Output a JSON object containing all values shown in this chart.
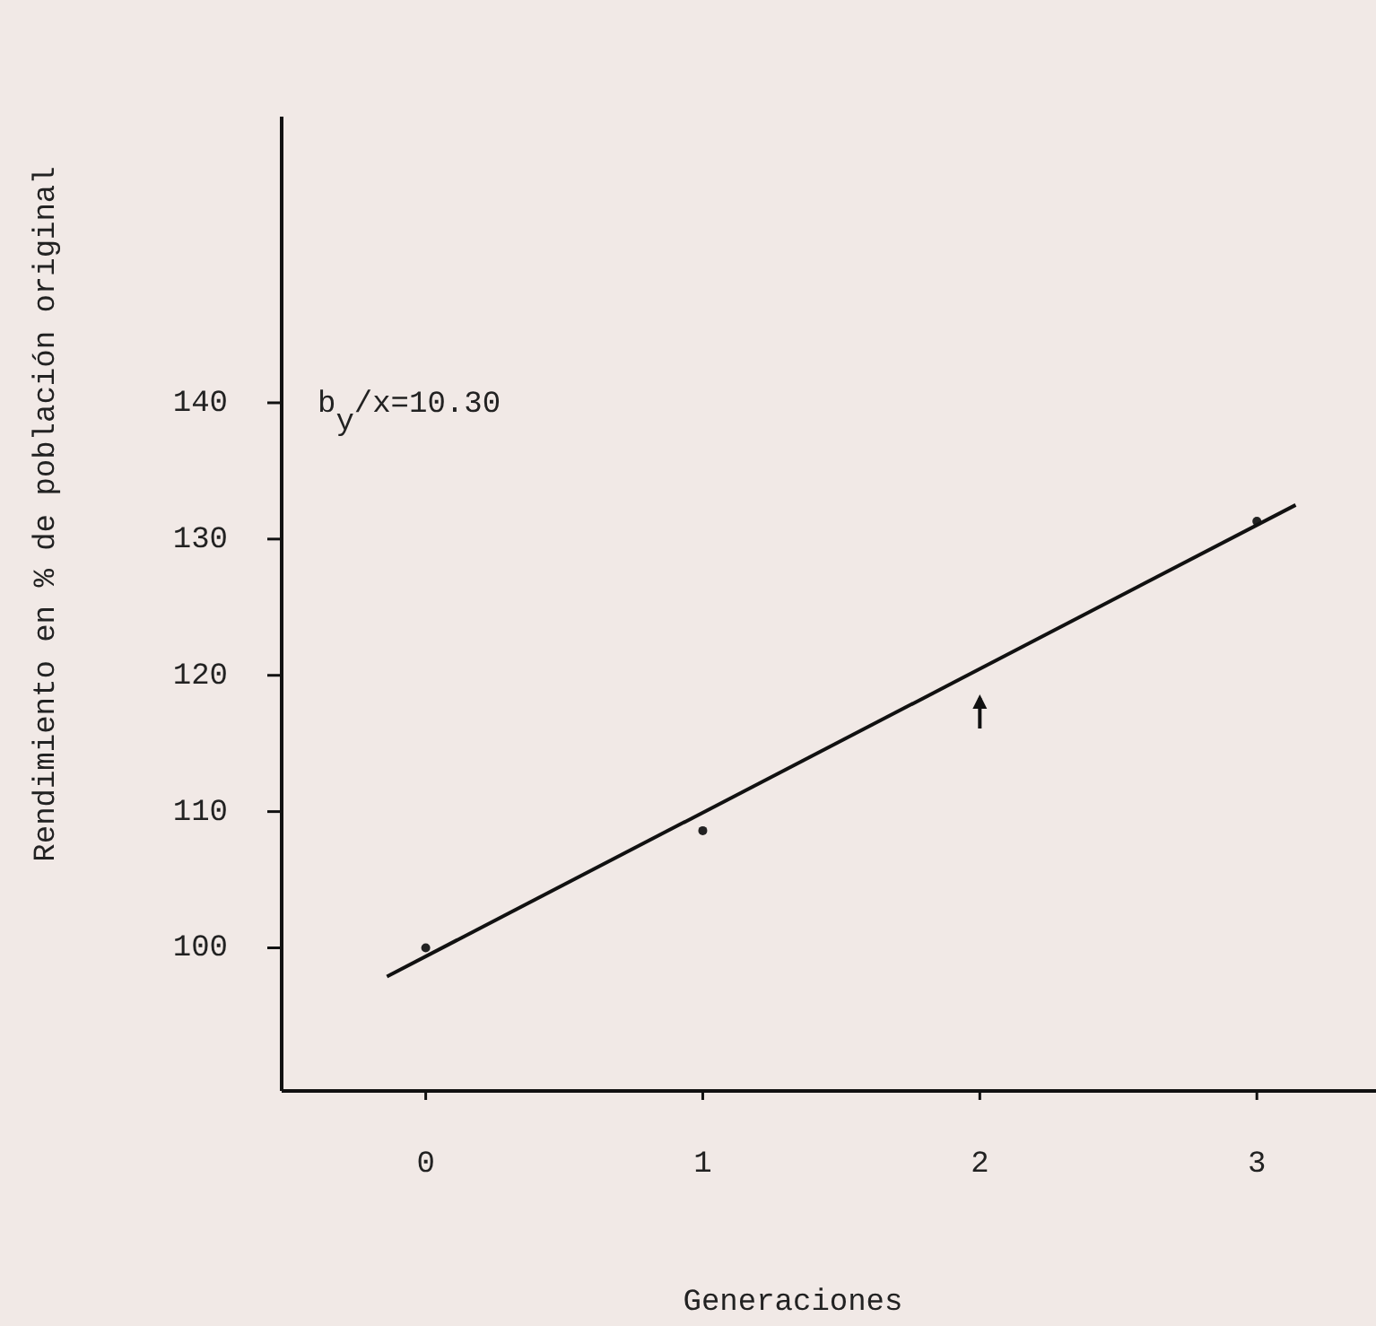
{
  "chart_data": {
    "type": "scatter",
    "xlabel": "Generaciones",
    "ylabel": "Rendimiento en % de población original",
    "xlim": [
      -0.52,
      3.43
    ],
    "xticks": [
      0,
      1,
      2,
      3
    ],
    "ylim": [
      89.5,
      161
    ],
    "yticks": [
      100,
      110,
      120,
      130,
      140
    ],
    "annotations": [
      "b$_{y}$/x=10.30"
    ],
    "series": [
      {
        "marker": "circle",
        "x": [
          0,
          1,
          3
        ],
        "values": [
          100,
          108.6,
          131.3
        ],
        "color": "#222222"
      },
      {
        "type": "line",
        "x": [
          -0.14,
          3.14
        ],
        "values": [
          97.9,
          132.5
        ],
        "color": "#111111",
        "line_style": "solid"
      }
    ]
  }
}
